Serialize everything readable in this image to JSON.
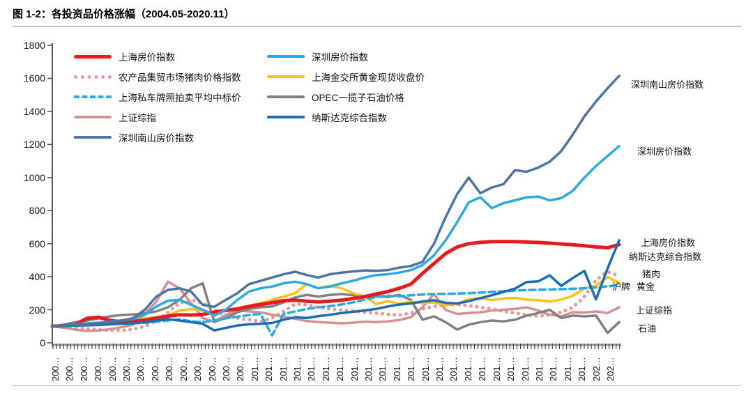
{
  "title": "图 1-2：各投资品价格涨幅（2004.05-2020.11）",
  "chart_data": {
    "type": "line",
    "title": "各投资品价格涨幅",
    "period_start": "2004.05",
    "period_end": "2020.11",
    "ylim": [
      0,
      1800
    ],
    "y_ticks": [
      0,
      200,
      400,
      600,
      800,
      1000,
      1200,
      1400,
      1600,
      1800
    ],
    "grid": "off",
    "legend_position": "top-left inside plot, two columns",
    "x_tick_labels": [
      "200…",
      "200…",
      "200…",
      "200…",
      "200…",
      "200…",
      "200…",
      "200…",
      "200…",
      "200…",
      "200…",
      "200…",
      "200…",
      "200…",
      "201…",
      "201…",
      "201…",
      "201…",
      "201…",
      "201…",
      "201…",
      "201…",
      "201…",
      "201…",
      "201…",
      "201…",
      "201…",
      "201…",
      "201…",
      "201…",
      "201…",
      "201…",
      "201…",
      "201…",
      "201…",
      "201…",
      "201…",
      "201…",
      "202…",
      "202…"
    ],
    "series": [
      {
        "name": "农产品集贸市场猪肉价格指数",
        "color": "#e8999c",
        "style": "dotted",
        "width": 5,
        "legend_col": 1,
        "legend_row": 2,
        "values": [
          100,
          97,
          92,
          85,
          80,
          76,
          75,
          82,
          100,
          135,
          185,
          240,
          260,
          240,
          200,
          160,
          150,
          140,
          128,
          150,
          190,
          235,
          230,
          215,
          205,
          198,
          192,
          185,
          180,
          172,
          168,
          180,
          205,
          220,
          230,
          232,
          225,
          215,
          205,
          190,
          180,
          168,
          162,
          170,
          185,
          215,
          280,
          380,
          430,
          405
        ]
      },
      {
        "name": "上证综指",
        "color": "#d59093",
        "style": "solid",
        "width": 3.5,
        "legend_col": 1,
        "legend_row": 4,
        "values": [
          100,
          92,
          80,
          72,
          75,
          82,
          95,
          110,
          175,
          250,
          370,
          330,
          240,
          150,
          127,
          170,
          195,
          190,
          185,
          170,
          158,
          145,
          132,
          125,
          122,
          118,
          122,
          128,
          125,
          130,
          138,
          155,
          215,
          295,
          200,
          175,
          180,
          185,
          195,
          200,
          205,
          215,
          195,
          170,
          160,
          185,
          183,
          190,
          180,
          215
        ]
      },
      {
        "name": "OPEC一揽子石油价格",
        "color": "#818181",
        "style": "solid",
        "width": 3.5,
        "legend_col": 2,
        "legend_row": 3,
        "values": [
          100,
          110,
          125,
          135,
          148,
          160,
          168,
          172,
          178,
          190,
          215,
          260,
          330,
          360,
          127,
          150,
          185,
          205,
          215,
          220,
          245,
          275,
          290,
          280,
          290,
          295,
          288,
          280,
          282,
          278,
          290,
          260,
          140,
          160,
          125,
          80,
          110,
          125,
          135,
          130,
          140,
          165,
          180,
          200,
          150,
          165,
          160,
          165,
          60,
          125
        ]
      },
      {
        "name": "上海金交所黄金现货收盘价",
        "color": "#ffc113",
        "style": "solid",
        "width": 3.5,
        "legend_col": 2,
        "legend_row": 2,
        "values": [
          100,
          103,
          106,
          110,
          115,
          127,
          138,
          140,
          148,
          155,
          165,
          195,
          205,
          195,
          185,
          200,
          210,
          225,
          240,
          260,
          280,
          300,
          355,
          330,
          345,
          330,
          300,
          280,
          235,
          252,
          235,
          250,
          240,
          245,
          228,
          235,
          262,
          272,
          258,
          268,
          272,
          262,
          258,
          250,
          262,
          285,
          330,
          345,
          398,
          362
        ]
      },
      {
        "name": "上海私车牌照拍卖平均中标价",
        "color": "#29abe2",
        "style": "dashed",
        "width": 3.6,
        "legend_col": 1,
        "legend_row": 3,
        "values": [
          100,
          102,
          105,
          108,
          110,
          112,
          115,
          118,
          122,
          128,
          135,
          142,
          130,
          125,
          135,
          148,
          158,
          168,
          175,
          45,
          175,
          190,
          205,
          215,
          222,
          232,
          245,
          262,
          278,
          285,
          282,
          288,
          292,
          295,
          296,
          298,
          300,
          304,
          308,
          312,
          316,
          319,
          321,
          323,
          325,
          327,
          330,
          335,
          342,
          350
        ]
      },
      {
        "name": "上海房价指数",
        "color": "#e8191f",
        "style": "solid",
        "width": 5,
        "legend_col": 1,
        "legend_row": 1,
        "values": [
          100,
          104,
          112,
          148,
          155,
          135,
          127,
          130,
          136,
          150,
          162,
          170,
          168,
          172,
          186,
          196,
          205,
          220,
          232,
          243,
          255,
          258,
          252,
          248,
          252,
          258,
          268,
          280,
          295,
          310,
          330,
          355,
          420,
          480,
          540,
          580,
          600,
          608,
          612,
          613,
          612,
          610,
          607,
          603,
          598,
          593,
          587,
          580,
          575,
          595
        ]
      },
      {
        "name": "纳斯达克综合指数",
        "color": "#1b6cb5",
        "style": "solid",
        "width": 3.5,
        "legend_col": 2,
        "legend_row": 4,
        "values": [
          100,
          102,
          104,
          106,
          108,
          112,
          116,
          118,
          125,
          135,
          143,
          135,
          125,
          115,
          75,
          90,
          105,
          112,
          115,
          120,
          140,
          155,
          150,
          162,
          170,
          180,
          188,
          196,
          205,
          220,
          232,
          238,
          250,
          258,
          242,
          238,
          252,
          270,
          288,
          308,
          328,
          368,
          372,
          408,
          345,
          392,
          435,
          262,
          450,
          620
        ]
      },
      {
        "name": "深圳房价指数",
        "color": "#29abe2",
        "style": "solid",
        "width": 3.5,
        "legend_col": 2,
        "legend_row": 1,
        "values": [
          100,
          105,
          112,
          118,
          122,
          128,
          135,
          145,
          170,
          220,
          255,
          260,
          230,
          200,
          165,
          200,
          260,
          310,
          330,
          340,
          360,
          370,
          355,
          330,
          340,
          360,
          375,
          395,
          410,
          415,
          425,
          440,
          470,
          530,
          620,
          730,
          850,
          880,
          815,
          845,
          862,
          880,
          885,
          862,
          875,
          920,
          1000,
          1070,
          1130,
          1190
        ]
      },
      {
        "name": "深圳南山房价指数",
        "color": "#4e73a4",
        "style": "solid",
        "width": 3.5,
        "legend_col": 1,
        "legend_row": 5,
        "values": [
          100,
          104,
          108,
          113,
          118,
          125,
          135,
          150,
          200,
          280,
          320,
          330,
          310,
          230,
          218,
          260,
          300,
          355,
          375,
          395,
          415,
          430,
          410,
          395,
          415,
          425,
          432,
          438,
          436,
          440,
          455,
          465,
          490,
          600,
          760,
          900,
          1000,
          905,
          940,
          960,
          1045,
          1035,
          1060,
          1095,
          1160,
          1260,
          1370,
          1460,
          1540,
          1615
        ]
      }
    ],
    "annotations": [
      {
        "text": "深圳南山房价指数",
        "x": 905,
        "y": 111
      },
      {
        "text": "深圳房价指数",
        "x": 914,
        "y": 207
      },
      {
        "text": "上海房价指数",
        "x": 919,
        "y": 338
      },
      {
        "text": "纳斯达克综合指数",
        "x": 902,
        "y": 358
      },
      {
        "text": "猪肉",
        "x": 921,
        "y": 383
      },
      {
        "text": "沪牌",
        "x": 878,
        "y": 401
      },
      {
        "text": "黄金",
        "x": 913,
        "y": 401
      },
      {
        "text": "上证综指",
        "x": 912,
        "y": 435
      },
      {
        "text": "石油",
        "x": 915,
        "y": 461
      }
    ]
  }
}
